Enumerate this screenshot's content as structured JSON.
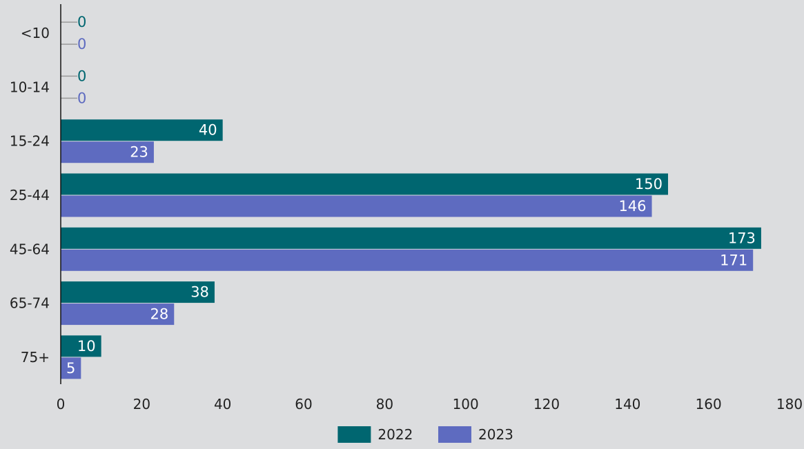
{
  "chart_data": {
    "type": "bar",
    "orientation": "horizontal",
    "categories": [
      "<10",
      "10-14",
      "15-24",
      "25-44",
      "45-64",
      "65-74",
      "75+"
    ],
    "series": [
      {
        "name": "2022",
        "color": "#006670",
        "values": [
          0,
          0,
          40,
          150,
          173,
          38,
          10
        ]
      },
      {
        "name": "2023",
        "color": "#5e6bc0",
        "values": [
          0,
          0,
          23,
          146,
          171,
          28,
          5
        ]
      }
    ],
    "x_ticks": [
      "0",
      "20",
      "40",
      "60",
      "80",
      "100",
      "120",
      "140",
      "160",
      "180"
    ],
    "xlim": [
      0,
      180
    ],
    "title": "",
    "xlabel": "",
    "ylabel": "",
    "grid": false,
    "legend_position": "bottom",
    "label_color_inside": "#ffffff",
    "leader_line_color": "#9a9a9a"
  }
}
